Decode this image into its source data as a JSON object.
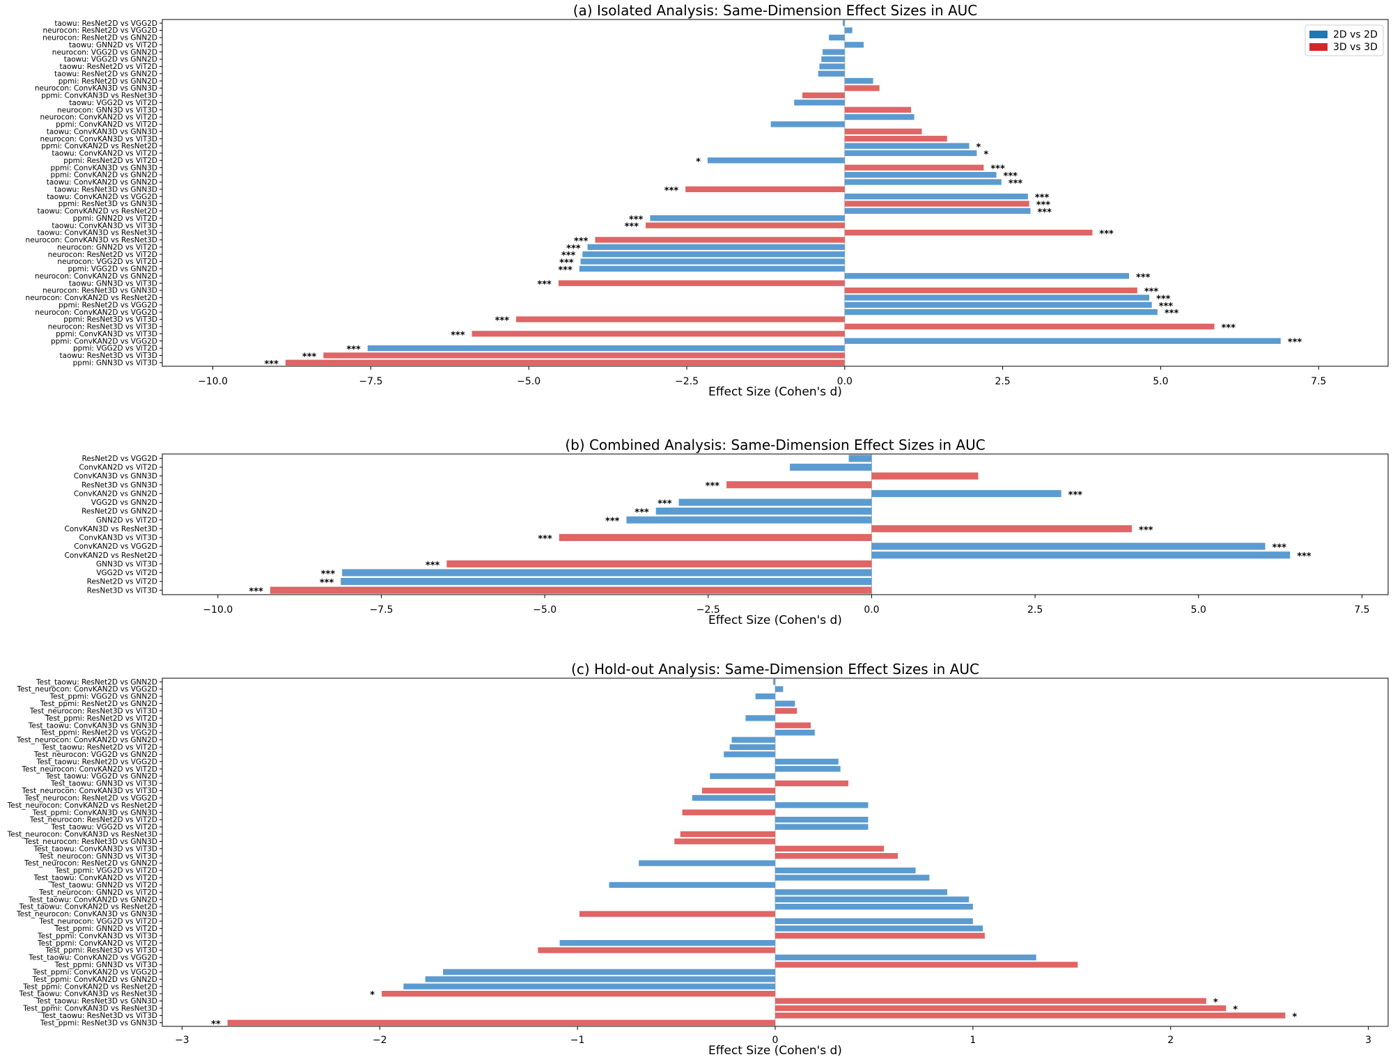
{
  "legend": {
    "colors": {
      "2D vs 2D": "#5b9bd0",
      "3D vs 3D": "#e06565"
    },
    "swatch_colors": {
      "2D vs 2D": "#1f77b4",
      "3D vs 3D": "#d62728"
    },
    "items": [
      "2D vs 2D",
      "3D vs 3D"
    ]
  },
  "chart_data": [
    {
      "type": "bar",
      "orientation": "horizontal",
      "title": "(a) Isolated Analysis: Same-Dimension Effect Sizes in AUC",
      "xlabel": "Effect Size (Cohen's d)",
      "xlim": [
        -10.8,
        8.6
      ],
      "xticks": [
        -10.0,
        -7.5,
        -5.0,
        -2.5,
        0.0,
        2.5,
        5.0,
        7.5
      ],
      "xtick_labels": [
        "−10.0",
        "−7.5",
        "−5.0",
        "−2.5",
        "0.0",
        "2.5",
        "5.0",
        "7.5"
      ],
      "legend_position": "top-right",
      "bars": [
        {
          "label": "taowu: ResNet2D vs VGG2D",
          "value": -0.03,
          "group": "2D vs 2D",
          "sig": ""
        },
        {
          "label": "neurocon: ResNet2D vs VGG2D",
          "value": 0.12,
          "group": "2D vs 2D",
          "sig": ""
        },
        {
          "label": "neurocon: ResNet2D vs GNN2D",
          "value": -0.25,
          "group": "2D vs 2D",
          "sig": ""
        },
        {
          "label": "taowu: GNN2D vs ViT2D",
          "value": 0.3,
          "group": "2D vs 2D",
          "sig": ""
        },
        {
          "label": "neurocon: VGG2D vs GNN2D",
          "value": -0.35,
          "group": "2D vs 2D",
          "sig": ""
        },
        {
          "label": "taowu: VGG2D vs GNN2D",
          "value": -0.37,
          "group": "2D vs 2D",
          "sig": ""
        },
        {
          "label": "taowu: ResNet2D vs ViT2D",
          "value": -0.4,
          "group": "2D vs 2D",
          "sig": ""
        },
        {
          "label": "taowu: ResNet2D vs GNN2D",
          "value": -0.42,
          "group": "2D vs 2D",
          "sig": ""
        },
        {
          "label": "ppmi: ResNet2D vs GNN2D",
          "value": 0.45,
          "group": "2D vs 2D",
          "sig": ""
        },
        {
          "label": "neurocon: ConvKAN3D vs GNN3D",
          "value": 0.55,
          "group": "3D vs 3D",
          "sig": ""
        },
        {
          "label": "ppmi: ConvKAN3D vs ResNet3D",
          "value": -0.67,
          "group": "3D vs 3D",
          "sig": ""
        },
        {
          "label": "taowu: VGG2D vs ViT2D",
          "value": -0.8,
          "group": "2D vs 2D",
          "sig": ""
        },
        {
          "label": "neurocon: GNN3D vs ViT3D",
          "value": 1.05,
          "group": "3D vs 3D",
          "sig": ""
        },
        {
          "label": "neurocon: ConvKAN2D vs ViT2D",
          "value": 1.1,
          "group": "2D vs 2D",
          "sig": ""
        },
        {
          "label": "ppmi: ConvKAN2D vs ViT2D",
          "value": -1.17,
          "group": "2D vs 2D",
          "sig": ""
        },
        {
          "label": "taowu: ConvKAN3D vs GNN3D",
          "value": 1.22,
          "group": "3D vs 3D",
          "sig": ""
        },
        {
          "label": "neurocon: ConvKAN3D vs ViT3D",
          "value": 1.62,
          "group": "3D vs 3D",
          "sig": ""
        },
        {
          "label": "ppmi: ConvKAN2D vs ResNet2D",
          "value": 1.97,
          "group": "2D vs 2D",
          "sig": "*"
        },
        {
          "label": "taowu: ConvKAN2D vs ViT2D",
          "value": 2.09,
          "group": "2D vs 2D",
          "sig": "*"
        },
        {
          "label": "ppmi: ResNet2D vs ViT2D",
          "value": -2.17,
          "group": "2D vs 2D",
          "sig": "*"
        },
        {
          "label": "ppmi: ConvKAN3D vs GNN3D",
          "value": 2.2,
          "group": "3D vs 3D",
          "sig": "***"
        },
        {
          "label": "ppmi: ConvKAN2D vs GNN2D",
          "value": 2.4,
          "group": "2D vs 2D",
          "sig": "***"
        },
        {
          "label": "taowu: ConvKAN2D vs GNN2D",
          "value": 2.48,
          "group": "2D vs 2D",
          "sig": "***"
        },
        {
          "label": "taowu: ResNet3D vs GNN3D",
          "value": -2.52,
          "group": "3D vs 3D",
          "sig": "***"
        },
        {
          "label": "taowu: ConvKAN2D vs VGG2D",
          "value": 2.9,
          "group": "2D vs 2D",
          "sig": "***"
        },
        {
          "label": "ppmi: ResNet3D vs GNN3D",
          "value": 2.92,
          "group": "3D vs 3D",
          "sig": "***"
        },
        {
          "label": "taowu: ConvKAN2D vs ResNet2D",
          "value": 2.94,
          "group": "2D vs 2D",
          "sig": "***"
        },
        {
          "label": "ppmi: GNN2D vs ViT2D",
          "value": -3.08,
          "group": "2D vs 2D",
          "sig": "***"
        },
        {
          "label": "taowu: ConvKAN3D vs ViT3D",
          "value": -3.15,
          "group": "3D vs 3D",
          "sig": "***"
        },
        {
          "label": "taowu: ConvKAN3D vs ResNet3D",
          "value": 3.92,
          "group": "3D vs 3D",
          "sig": "***"
        },
        {
          "label": "neurocon: ConvKAN3D vs ResNet3D",
          "value": -3.95,
          "group": "3D vs 3D",
          "sig": "***"
        },
        {
          "label": "neurocon: GNN2D vs ViT2D",
          "value": -4.07,
          "group": "2D vs 2D",
          "sig": "***"
        },
        {
          "label": "neurocon: ResNet2D vs ViT2D",
          "value": -4.15,
          "group": "2D vs 2D",
          "sig": "***"
        },
        {
          "label": "neurocon: VGG2D vs ViT2D",
          "value": -4.18,
          "group": "2D vs 2D",
          "sig": "***"
        },
        {
          "label": "ppmi: VGG2D vs GNN2D",
          "value": -4.2,
          "group": "2D vs 2D",
          "sig": "***"
        },
        {
          "label": "neurocon: ConvKAN2D vs GNN2D",
          "value": 4.5,
          "group": "2D vs 2D",
          "sig": "***"
        },
        {
          "label": "taowu: GNN3D vs ViT3D",
          "value": -4.53,
          "group": "3D vs 3D",
          "sig": "***"
        },
        {
          "label": "neurocon: ResNet3D vs GNN3D",
          "value": 4.63,
          "group": "3D vs 3D",
          "sig": "***"
        },
        {
          "label": "neurocon: ConvKAN2D vs ResNet2D",
          "value": 4.82,
          "group": "2D vs 2D",
          "sig": "***"
        },
        {
          "label": "ppmi: ResNet2D vs VGG2D",
          "value": 4.86,
          "group": "2D vs 2D",
          "sig": "***"
        },
        {
          "label": "neurocon: ConvKAN2D vs VGG2D",
          "value": 4.95,
          "group": "2D vs 2D",
          "sig": "***"
        },
        {
          "label": "ppmi: ResNet3D vs ViT3D",
          "value": -5.2,
          "group": "3D vs 3D",
          "sig": "***"
        },
        {
          "label": "neurocon: ResNet3D vs ViT3D",
          "value": 5.85,
          "group": "3D vs 3D",
          "sig": "***"
        },
        {
          "label": "ppmi: ConvKAN3D vs ViT3D",
          "value": -5.9,
          "group": "3D vs 3D",
          "sig": "***"
        },
        {
          "label": "ppmi: ConvKAN2D vs VGG2D",
          "value": 6.9,
          "group": "2D vs 2D",
          "sig": "***"
        },
        {
          "label": "ppmi: VGG2D vs ViT2D",
          "value": -7.55,
          "group": "2D vs 2D",
          "sig": "***"
        },
        {
          "label": "taowu: ResNet3D vs ViT3D",
          "value": -8.25,
          "group": "3D vs 3D",
          "sig": "***"
        },
        {
          "label": "ppmi: GNN3D vs ViT3D",
          "value": -8.85,
          "group": "3D vs 3D",
          "sig": "***"
        }
      ]
    },
    {
      "type": "bar",
      "orientation": "horizontal",
      "title": "(b) Combined Analysis: Same-Dimension Effect Sizes in AUC",
      "xlabel": "Effect Size (Cohen's d)",
      "xlim": [
        -10.85,
        7.9
      ],
      "xticks": [
        -10.0,
        -7.5,
        -5.0,
        -2.5,
        0.0,
        2.5,
        5.0,
        7.5
      ],
      "xtick_labels": [
        "−10.0",
        "−7.5",
        "−5.0",
        "−2.5",
        "0.0",
        "2.5",
        "5.0",
        "7.5"
      ],
      "bars": [
        {
          "label": "ResNet2D vs VGG2D",
          "value": -0.35,
          "group": "2D vs 2D",
          "sig": ""
        },
        {
          "label": "ConvKAN2D vs ViT2D",
          "value": -1.25,
          "group": "2D vs 2D",
          "sig": ""
        },
        {
          "label": "ConvKAN3D vs GNN3D",
          "value": 1.63,
          "group": "3D vs 3D",
          "sig": ""
        },
        {
          "label": "ResNet3D vs GNN3D",
          "value": -2.22,
          "group": "3D vs 3D",
          "sig": "***"
        },
        {
          "label": "ConvKAN2D vs GNN2D",
          "value": 2.9,
          "group": "2D vs 2D",
          "sig": "***"
        },
        {
          "label": "VGG2D vs GNN2D",
          "value": -2.95,
          "group": "2D vs 2D",
          "sig": "***"
        },
        {
          "label": "ResNet2D vs GNN2D",
          "value": -3.3,
          "group": "2D vs 2D",
          "sig": "***"
        },
        {
          "label": "GNN2D vs ViT2D",
          "value": -3.75,
          "group": "2D vs 2D",
          "sig": "***"
        },
        {
          "label": "ConvKAN3D vs ResNet3D",
          "value": 3.98,
          "group": "3D vs 3D",
          "sig": "***"
        },
        {
          "label": "ConvKAN3D vs ViT3D",
          "value": -4.78,
          "group": "3D vs 3D",
          "sig": "***"
        },
        {
          "label": "ConvKAN2D vs VGG2D",
          "value": 6.02,
          "group": "2D vs 2D",
          "sig": "***"
        },
        {
          "label": "ConvKAN2D vs ResNet2D",
          "value": 6.4,
          "group": "2D vs 2D",
          "sig": "***"
        },
        {
          "label": "GNN3D vs ViT3D",
          "value": -6.5,
          "group": "3D vs 3D",
          "sig": "***"
        },
        {
          "label": "VGG2D vs ViT2D",
          "value": -8.1,
          "group": "2D vs 2D",
          "sig": "***"
        },
        {
          "label": "ResNet2D vs ViT2D",
          "value": -8.12,
          "group": "2D vs 2D",
          "sig": "***"
        },
        {
          "label": "ResNet3D vs ViT3D",
          "value": -9.2,
          "group": "3D vs 3D",
          "sig": "***"
        }
      ]
    },
    {
      "type": "bar",
      "orientation": "horizontal",
      "title": "(c) Hold-out Analysis: Same-Dimension Effect Sizes in AUC",
      "xlabel": "Effect Size (Cohen's d)",
      "xlim": [
        -3.1,
        3.1
      ],
      "xticks": [
        -3,
        -2,
        -1,
        0,
        1,
        2,
        3
      ],
      "xtick_labels": [
        "−3",
        "−2",
        "−1",
        "0",
        "1",
        "2",
        "3"
      ],
      "bars": [
        {
          "label": "Test_taowu: ResNet2D vs GNN2D",
          "value": -0.01,
          "group": "2D vs 2D",
          "sig": ""
        },
        {
          "label": "Test_neurocon: ConvKAN2D vs VGG2D",
          "value": 0.04,
          "group": "2D vs 2D",
          "sig": ""
        },
        {
          "label": "Test_ppmi: VGG2D vs GNN2D",
          "value": -0.1,
          "group": "2D vs 2D",
          "sig": ""
        },
        {
          "label": "Test_ppmi: ResNet2D vs GNN2D",
          "value": 0.1,
          "group": "2D vs 2D",
          "sig": ""
        },
        {
          "label": "Test_neurocon: ResNet3D vs ViT3D",
          "value": 0.11,
          "group": "3D vs 3D",
          "sig": ""
        },
        {
          "label": "Test_ppmi: ResNet2D vs ViT2D",
          "value": -0.15,
          "group": "2D vs 2D",
          "sig": ""
        },
        {
          "label": "Test_taowu: ConvKAN3D vs GNN3D",
          "value": 0.18,
          "group": "3D vs 3D",
          "sig": ""
        },
        {
          "label": "Test_ppmi: ResNet2D vs VGG2D",
          "value": 0.2,
          "group": "2D vs 2D",
          "sig": ""
        },
        {
          "label": "Test_neurocon: ConvKAN2D vs GNN2D",
          "value": -0.22,
          "group": "2D vs 2D",
          "sig": ""
        },
        {
          "label": "Test_taowu: ResNet2D vs ViT2D",
          "value": -0.23,
          "group": "2D vs 2D",
          "sig": ""
        },
        {
          "label": "Test_neurocon: VGG2D vs GNN2D",
          "value": -0.26,
          "group": "2D vs 2D",
          "sig": ""
        },
        {
          "label": "Test_taowu: ResNet2D vs VGG2D",
          "value": 0.32,
          "group": "2D vs 2D",
          "sig": ""
        },
        {
          "label": "Test_neurocon: ConvKAN2D vs ViT2D",
          "value": 0.33,
          "group": "2D vs 2D",
          "sig": ""
        },
        {
          "label": "Test_taowu: VGG2D vs GNN2D",
          "value": -0.33,
          "group": "2D vs 2D",
          "sig": ""
        },
        {
          "label": "Test_taowu: GNN3D vs ViT3D",
          "value": 0.37,
          "group": "3D vs 3D",
          "sig": ""
        },
        {
          "label": "Test_neurocon: ConvKAN3D vs ViT3D",
          "value": -0.37,
          "group": "3D vs 3D",
          "sig": ""
        },
        {
          "label": "Test_neurocon: ResNet2D vs VGG2D",
          "value": -0.42,
          "group": "2D vs 2D",
          "sig": ""
        },
        {
          "label": "Test_neurocon: ConvKAN2D vs ResNet2D",
          "value": 0.47,
          "group": "2D vs 2D",
          "sig": ""
        },
        {
          "label": "Test_ppmi: ConvKAN3D vs GNN3D",
          "value": -0.47,
          "group": "3D vs 3D",
          "sig": ""
        },
        {
          "label": "Test_neurocon: ResNet2D vs ViT2D",
          "value": 0.47,
          "group": "2D vs 2D",
          "sig": ""
        },
        {
          "label": "Test_taowu: VGG2D vs ViT2D",
          "value": 0.47,
          "group": "2D vs 2D",
          "sig": ""
        },
        {
          "label": "Test_neurocon: ConvKAN3D vs ResNet3D",
          "value": -0.48,
          "group": "3D vs 3D",
          "sig": ""
        },
        {
          "label": "Test_neurocon: ResNet3D vs GNN3D",
          "value": -0.51,
          "group": "3D vs 3D",
          "sig": ""
        },
        {
          "label": "Test_taowu: ConvKAN3D vs ViT3D",
          "value": 0.55,
          "group": "3D vs 3D",
          "sig": ""
        },
        {
          "label": "Test_neurocon: GNN3D vs ViT3D",
          "value": 0.62,
          "group": "3D vs 3D",
          "sig": ""
        },
        {
          "label": "Test_neurocon: ResNet2D vs GNN2D",
          "value": -0.69,
          "group": "2D vs 2D",
          "sig": ""
        },
        {
          "label": "Test_ppmi: VGG2D vs ViT2D",
          "value": 0.71,
          "group": "2D vs 2D",
          "sig": ""
        },
        {
          "label": "Test_taowu: ConvKAN2D vs ViT2D",
          "value": 0.78,
          "group": "2D vs 2D",
          "sig": ""
        },
        {
          "label": "Test_taowu: GNN2D vs ViT2D",
          "value": -0.84,
          "group": "2D vs 2D",
          "sig": ""
        },
        {
          "label": "Test_neurocon: GNN2D vs ViT2D",
          "value": 0.87,
          "group": "2D vs 2D",
          "sig": ""
        },
        {
          "label": "Test_taowu: ConvKAN2D vs GNN2D",
          "value": 0.98,
          "group": "2D vs 2D",
          "sig": ""
        },
        {
          "label": "Test_taowu: ConvKAN2D vs ResNet2D",
          "value": 1.0,
          "group": "2D vs 2D",
          "sig": ""
        },
        {
          "label": "Test_neurocon: ConvKAN3D vs GNN3D",
          "value": -0.99,
          "group": "3D vs 3D",
          "sig": ""
        },
        {
          "label": "Test_neurocon: VGG2D vs ViT2D",
          "value": 1.0,
          "group": "2D vs 2D",
          "sig": ""
        },
        {
          "label": "Test_ppmi: GNN2D vs ViT2D",
          "value": 1.05,
          "group": "2D vs 2D",
          "sig": ""
        },
        {
          "label": "Test_ppmi: ConvKAN3D vs ViT3D",
          "value": 1.06,
          "group": "3D vs 3D",
          "sig": ""
        },
        {
          "label": "Test_ppmi: ConvKAN2D vs ViT2D",
          "value": -1.09,
          "group": "2D vs 2D",
          "sig": ""
        },
        {
          "label": "Test_ppmi: ResNet3D vs ViT3D",
          "value": -1.2,
          "group": "3D vs 3D",
          "sig": ""
        },
        {
          "label": "Test_taowu: ConvKAN2D vs VGG2D",
          "value": 1.32,
          "group": "2D vs 2D",
          "sig": ""
        },
        {
          "label": "Test_ppmi: GNN3D vs ViT3D",
          "value": 1.53,
          "group": "3D vs 3D",
          "sig": ""
        },
        {
          "label": "Test_ppmi: ConvKAN2D vs VGG2D",
          "value": -1.68,
          "group": "2D vs 2D",
          "sig": ""
        },
        {
          "label": "Test_ppmi: ConvKAN2D vs GNN2D",
          "value": -1.77,
          "group": "2D vs 2D",
          "sig": ""
        },
        {
          "label": "Test_ppmi: ConvKAN2D vs ResNet2D",
          "value": -1.88,
          "group": "2D vs 2D",
          "sig": ""
        },
        {
          "label": "Test_taowu: ConvKAN3D vs ResNet3D",
          "value": -1.99,
          "group": "3D vs 3D",
          "sig": "*"
        },
        {
          "label": "Test_taowu: ResNet3D vs GNN3D",
          "value": 2.18,
          "group": "3D vs 3D",
          "sig": "*"
        },
        {
          "label": "Test_ppmi: ConvKAN3D vs ResNet3D",
          "value": 2.28,
          "group": "3D vs 3D",
          "sig": "*"
        },
        {
          "label": "Test_taowu: ResNet3D vs ViT3D",
          "value": 2.58,
          "group": "3D vs 3D",
          "sig": "*"
        },
        {
          "label": "Test_ppmi: ResNet3D vs GNN3D",
          "value": -2.77,
          "group": "3D vs 3D",
          "sig": "**"
        }
      ]
    }
  ]
}
